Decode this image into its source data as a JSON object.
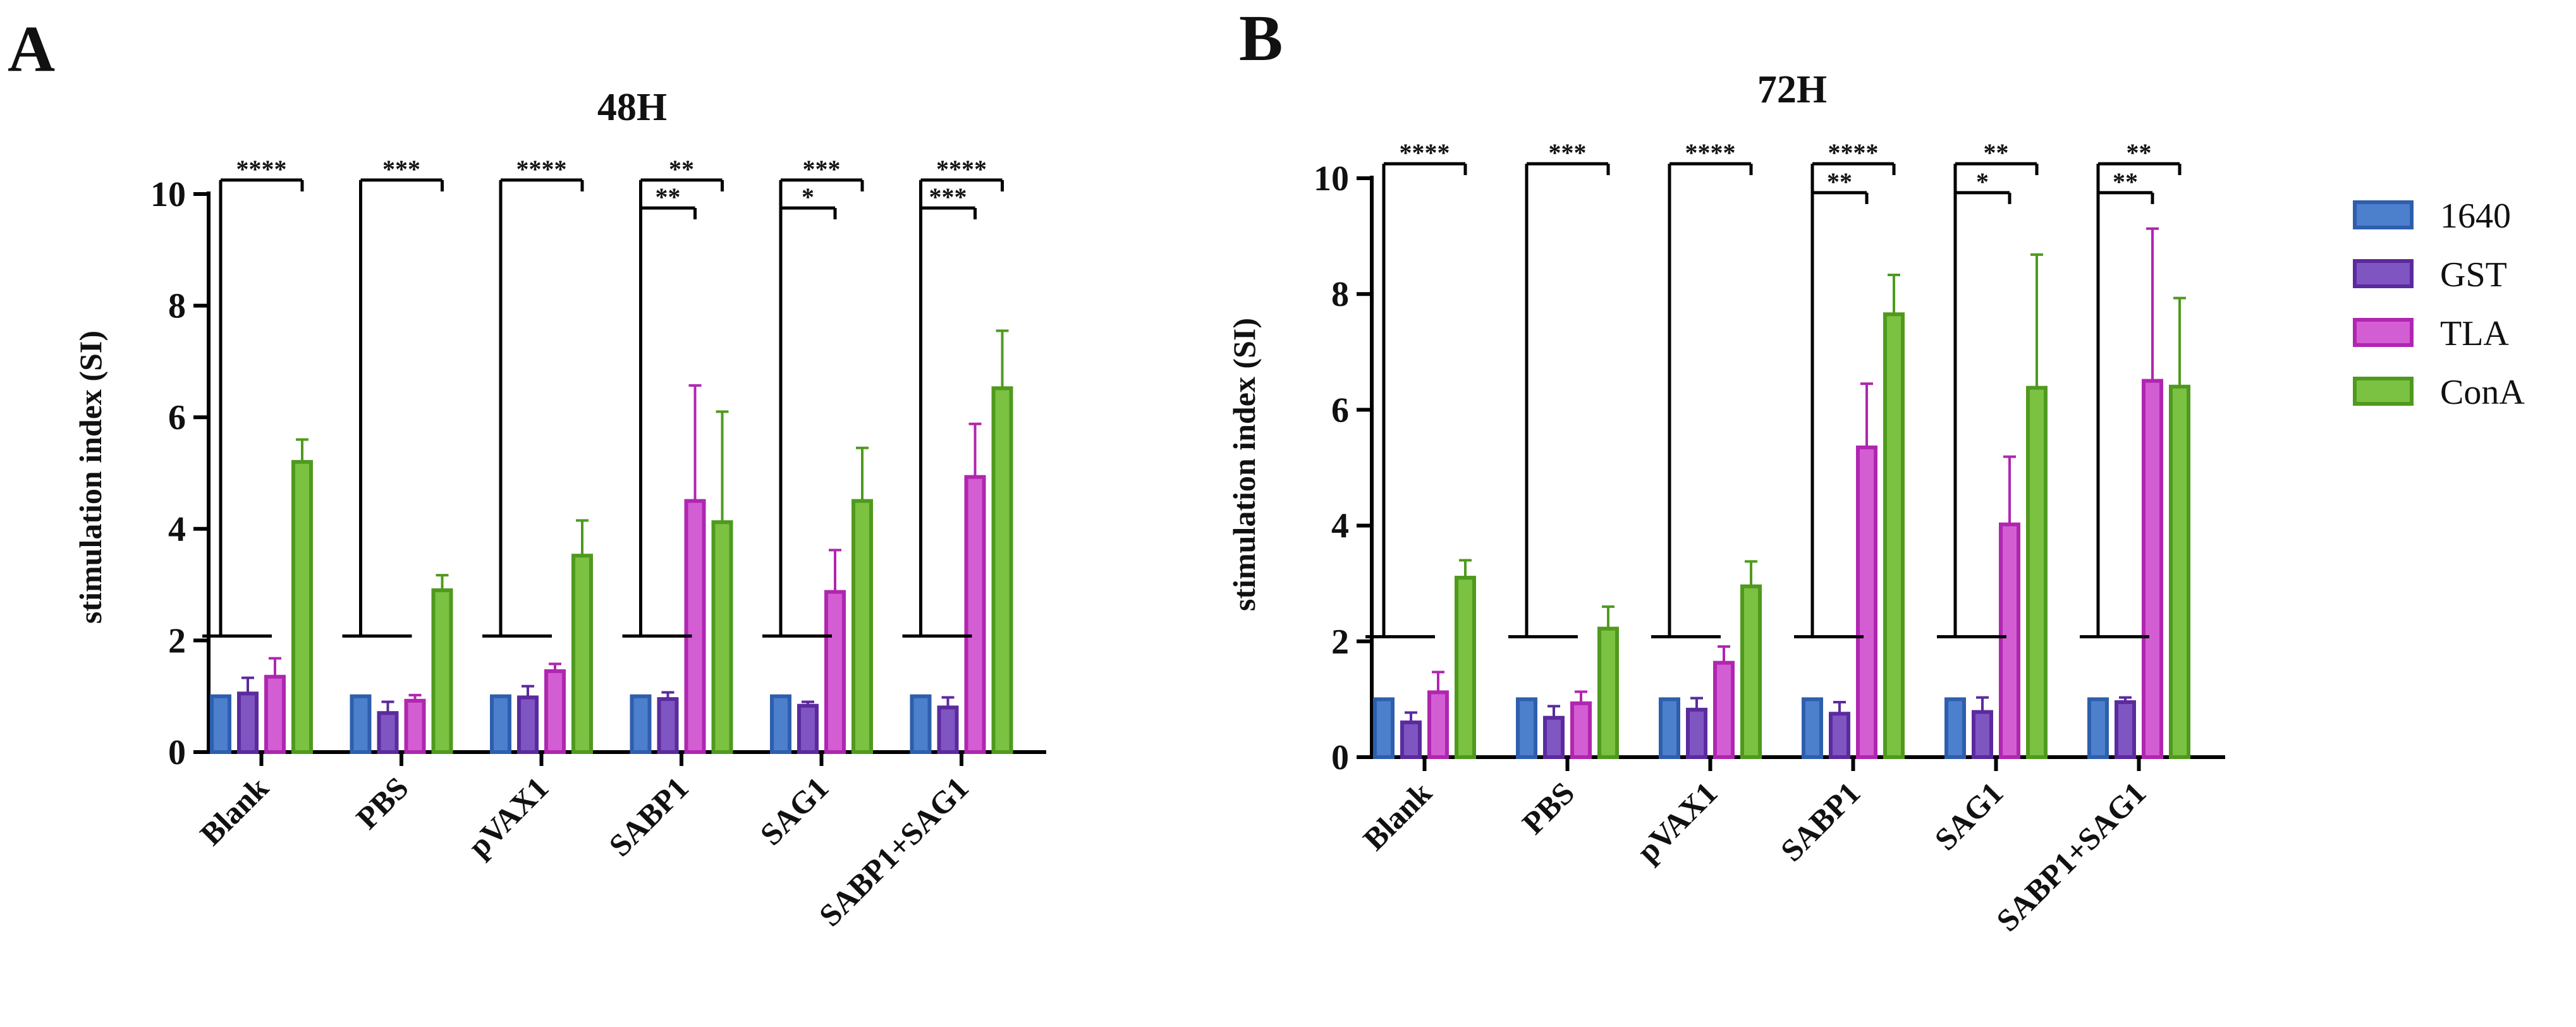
{
  "panels": [
    {
      "letter": "A",
      "title": "48H",
      "ylabel": "stimulation index (SI)",
      "ylim": [
        0,
        10
      ],
      "yticks": [
        "0",
        "2",
        "4",
        "6",
        "8",
        "10"
      ],
      "categories": [
        "Blank",
        "PBS",
        "pVAX1",
        "SABP1",
        "SAG1",
        "SABP1+SAG1"
      ],
      "series": [
        {
          "name": "1640",
          "values": [
            1.0,
            1.0,
            1.0,
            1.0,
            1.0,
            1.0
          ],
          "errors": [
            0,
            0,
            0,
            0,
            0,
            0
          ]
        },
        {
          "name": "GST",
          "values": [
            1.05,
            0.7,
            0.98,
            0.95,
            0.83,
            0.8
          ],
          "errors": [
            0.28,
            0.2,
            0.2,
            0.12,
            0.07,
            0.18
          ]
        },
        {
          "name": "TLA",
          "values": [
            1.35,
            0.92,
            1.45,
            4.5,
            2.87,
            4.93
          ],
          "errors": [
            0.33,
            0.1,
            0.13,
            2.07,
            0.75,
            0.95
          ]
        },
        {
          "name": "ConA",
          "values": [
            5.2,
            2.9,
            3.52,
            4.12,
            4.5,
            6.52
          ],
          "errors": [
            0.4,
            0.27,
            0.63,
            1.98,
            0.95,
            1.03
          ]
        }
      ],
      "significance": [
        {
          "group": "Blank",
          "from": "1640",
          "to": "ConA",
          "label": "****",
          "row": 0
        },
        {
          "group": "PBS",
          "from": "1640",
          "to": "ConA",
          "label": "***",
          "row": 0
        },
        {
          "group": "pVAX1",
          "from": "1640",
          "to": "ConA",
          "label": "****",
          "row": 0
        },
        {
          "group": "SABP1",
          "from": "1640",
          "to": "TLA",
          "label": "**",
          "row": 1
        },
        {
          "group": "SABP1",
          "from": "1640",
          "to": "ConA",
          "label": "**",
          "row": 0
        },
        {
          "group": "SAG1",
          "from": "1640",
          "to": "TLA",
          "label": "*",
          "row": 1
        },
        {
          "group": "SAG1",
          "from": "1640",
          "to": "ConA",
          "label": "***",
          "row": 0
        },
        {
          "group": "SABP1+SAG1",
          "from": "1640",
          "to": "TLA",
          "label": "***",
          "row": 1
        },
        {
          "group": "SABP1+SAG1",
          "from": "1640",
          "to": "ConA",
          "label": "****",
          "row": 0
        }
      ]
    },
    {
      "letter": "B",
      "title": "72H",
      "ylabel": "stimulation index (SI)",
      "ylim": [
        0,
        10
      ],
      "yticks": [
        "0",
        "2",
        "4",
        "6",
        "8",
        "10"
      ],
      "categories": [
        "Blank",
        "PBS",
        "pVAX1",
        "SABP1",
        "SAG1",
        "SABP1+SAG1"
      ],
      "series": [
        {
          "name": "1640",
          "values": [
            1.0,
            1.0,
            1.0,
            1.0,
            1.0,
            1.0
          ],
          "errors": [
            0,
            0,
            0,
            0,
            0,
            0
          ]
        },
        {
          "name": "GST",
          "values": [
            0.6,
            0.68,
            0.82,
            0.75,
            0.78,
            0.95
          ],
          "errors": [
            0.17,
            0.2,
            0.2,
            0.2,
            0.25,
            0.08
          ]
        },
        {
          "name": "TLA",
          "values": [
            1.12,
            0.93,
            1.63,
            5.35,
            4.02,
            6.5
          ],
          "errors": [
            0.35,
            0.2,
            0.28,
            1.1,
            1.17,
            2.63
          ]
        },
        {
          "name": "ConA",
          "values": [
            3.1,
            2.22,
            2.95,
            7.65,
            6.38,
            6.4
          ],
          "errors": [
            0.3,
            0.38,
            0.43,
            0.68,
            2.3,
            1.53
          ]
        }
      ],
      "significance": [
        {
          "group": "Blank",
          "from": "1640",
          "to": "ConA",
          "label": "****",
          "row": 0
        },
        {
          "group": "PBS",
          "from": "1640",
          "to": "ConA",
          "label": "***",
          "row": 0
        },
        {
          "group": "pVAX1",
          "from": "1640",
          "to": "ConA",
          "label": "****",
          "row": 0
        },
        {
          "group": "SABP1",
          "from": "1640",
          "to": "TLA",
          "label": "**",
          "row": 1
        },
        {
          "group": "SABP1",
          "from": "1640",
          "to": "ConA",
          "label": "****",
          "row": 0
        },
        {
          "group": "SAG1",
          "from": "1640",
          "to": "TLA",
          "label": "*",
          "row": 1
        },
        {
          "group": "SAG1",
          "from": "1640",
          "to": "ConA",
          "label": "**",
          "row": 0
        },
        {
          "group": "SABP1+SAG1",
          "from": "1640",
          "to": "TLA",
          "label": "**",
          "row": 1
        },
        {
          "group": "SABP1+SAG1",
          "from": "1640",
          "to": "ConA",
          "label": "**",
          "row": 0
        }
      ]
    }
  ],
  "legend": [
    {
      "name": "1640",
      "color": "#2E5EAD",
      "fill": "#4C7FCC"
    },
    {
      "name": "GST",
      "color": "#5B2A9E",
      "fill": "#7F55C2"
    },
    {
      "name": "TLA",
      "color": "#B026B0",
      "fill": "#D35ED3"
    },
    {
      "name": "ConA",
      "color": "#4F9A1E",
      "fill": "#7BC142"
    }
  ],
  "chart_data": [
    {
      "type": "bar",
      "title": "48H",
      "xlabel": "",
      "ylabel": "stimulation index (SI)",
      "ylim": [
        0,
        10
      ],
      "categories": [
        "Blank",
        "PBS",
        "pVAX1",
        "SABP1",
        "SAG1",
        "SABP1+SAG1"
      ],
      "series": [
        {
          "name": "1640",
          "values": [
            1.0,
            1.0,
            1.0,
            1.0,
            1.0,
            1.0
          ]
        },
        {
          "name": "GST",
          "values": [
            1.05,
            0.7,
            0.98,
            0.95,
            0.83,
            0.8
          ]
        },
        {
          "name": "TLA",
          "values": [
            1.35,
            0.92,
            1.45,
            4.5,
            2.87,
            4.93
          ]
        },
        {
          "name": "ConA",
          "values": [
            5.2,
            2.9,
            3.52,
            4.12,
            4.5,
            6.52
          ]
        }
      ]
    },
    {
      "type": "bar",
      "title": "72H",
      "xlabel": "",
      "ylabel": "stimulation index (SI)",
      "ylim": [
        0,
        10
      ],
      "categories": [
        "Blank",
        "PBS",
        "pVAX1",
        "SABP1",
        "SAG1",
        "SABP1+SAG1"
      ],
      "series": [
        {
          "name": "1640",
          "values": [
            1.0,
            1.0,
            1.0,
            1.0,
            1.0,
            1.0
          ]
        },
        {
          "name": "GST",
          "values": [
            0.6,
            0.68,
            0.82,
            0.75,
            0.78,
            0.95
          ]
        },
        {
          "name": "TLA",
          "values": [
            1.12,
            0.93,
            1.63,
            5.35,
            4.02,
            6.5
          ]
        },
        {
          "name": "ConA",
          "values": [
            3.1,
            2.22,
            2.95,
            7.65,
            6.38,
            6.4
          ]
        }
      ]
    }
  ]
}
